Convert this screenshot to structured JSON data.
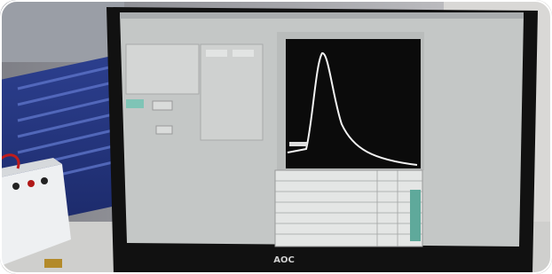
{
  "scene": {
    "monitor_logo": "AOC"
  }
}
